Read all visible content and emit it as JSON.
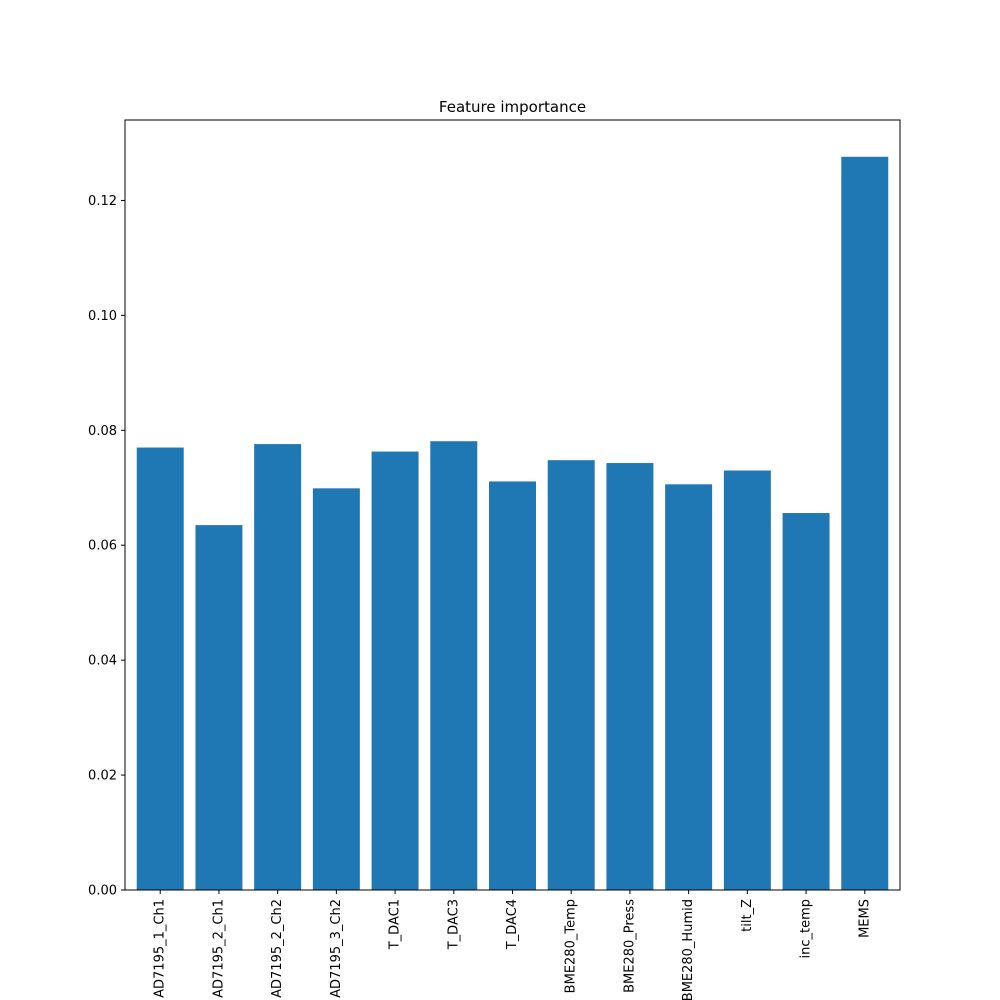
{
  "chart_data": {
    "type": "bar",
    "title": "Feature importance",
    "xlabel": "",
    "ylabel": "",
    "categories": [
      "AD7195_1_Ch1",
      "AD7195_2_Ch1",
      "AD7195_2_Ch2",
      "AD7195_3_Ch2",
      "T_DAC1",
      "T_DAC3",
      "T_DAC4",
      "BME280_Temp",
      "BME280_Press",
      "BME280_Humid",
      "tilt_Z",
      "inc_temp",
      "MEMS"
    ],
    "values": [
      0.077,
      0.0635,
      0.0776,
      0.0699,
      0.0763,
      0.0781,
      0.0711,
      0.0748,
      0.0743,
      0.0706,
      0.073,
      0.0656,
      0.1276
    ],
    "ylim": [
      0,
      0.134
    ],
    "yticks": [
      0.0,
      0.02,
      0.04,
      0.06,
      0.08,
      0.1,
      0.12
    ],
    "ytick_labels": [
      "0.00",
      "0.02",
      "0.04",
      "0.06",
      "0.08",
      "0.10",
      "0.12"
    ],
    "grid": false,
    "colors": {
      "bar": "#1f77b4",
      "axis": "#000000",
      "background": "#ffffff"
    }
  }
}
